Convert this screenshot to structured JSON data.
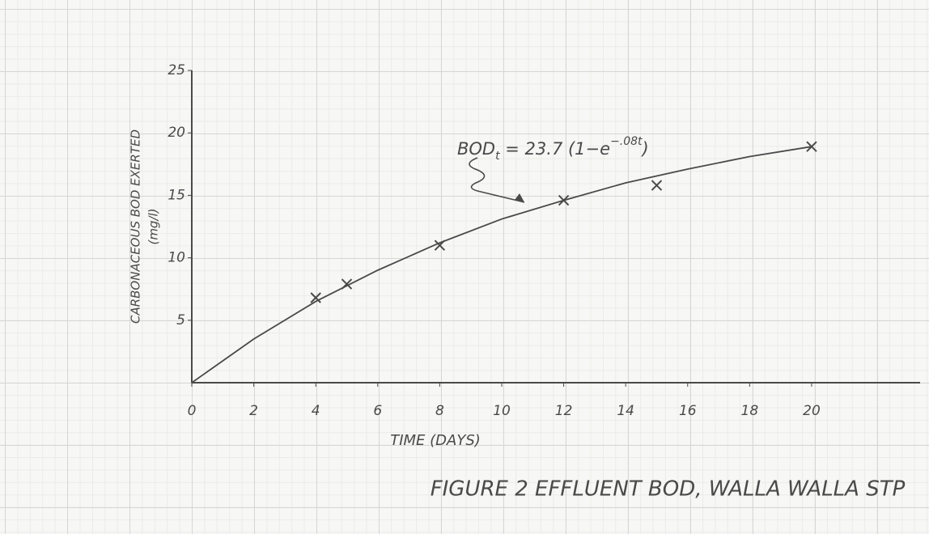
{
  "chart_data": {
    "type": "scatter",
    "title": "FIGURE 2   EFFLUENT BOD, WALLA WALLA STP",
    "x_label": "TIME (DAYS)",
    "y_label": "CARBONACEOUS BOD EXERTED",
    "y_unit": "(mg/l)",
    "annotation": {
      "lead": "BOD",
      "sub": "t",
      "body": " = 23.7 (1−e",
      "sup": "−.08t",
      "close": ")"
    },
    "points": {
      "x": [
        4,
        5,
        8,
        12,
        15,
        20
      ],
      "values": [
        6.8,
        7.9,
        11.0,
        14.6,
        15.8,
        18.9
      ]
    },
    "curve": {
      "x": [
        0,
        2,
        4,
        6,
        8,
        10,
        12,
        14,
        16,
        18,
        20
      ],
      "values": [
        0,
        3.5,
        6.5,
        9.0,
        11.2,
        13.1,
        14.6,
        16.0,
        17.1,
        18.1,
        18.9
      ]
    },
    "color": "#4a4a4a",
    "xlim": [
      0,
      23.5
    ],
    "ylim": [
      0,
      25
    ],
    "xticks": [
      0,
      2,
      4,
      6,
      8,
      10,
      12,
      14,
      16,
      18,
      20
    ],
    "yticks": [
      5,
      10,
      15,
      20,
      25
    ]
  }
}
